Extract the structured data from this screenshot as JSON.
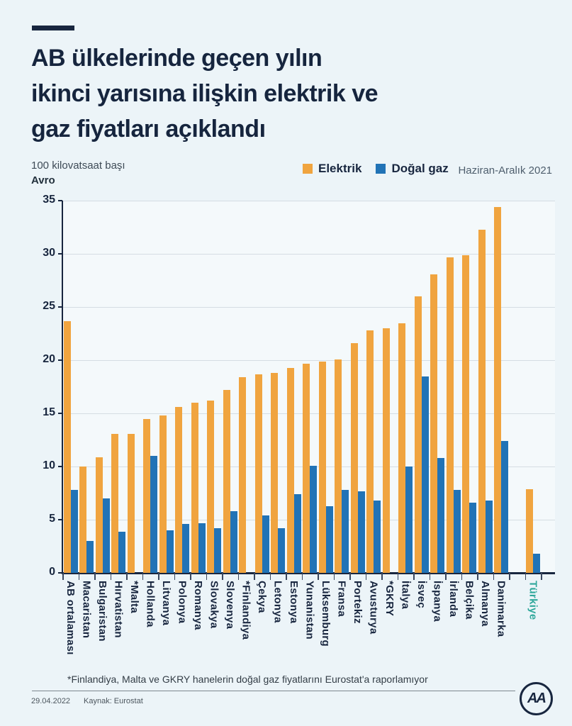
{
  "header": {
    "title": "AB ülkelerinde geçen yılın ikinci yarısına ilişkin elektrik ve gaz fiyatları açıklandı",
    "title_lines": [
      "AB ülkelerinde geçen yılın",
      "ikinci yarısına ilişkin elektrik ve",
      "gaz fiyatları açıklandı"
    ]
  },
  "subtitle": {
    "line1": "100 kilovatsaat başı",
    "line2": "Avro"
  },
  "legend": {
    "electric": "Elektrik",
    "gas": "Doğal gaz",
    "period": "Haziran-Aralık 2021"
  },
  "footnote": "*Finlandiya, Malta ve GKRY hanelerin doğal gaz fiyatlarını Eurostat'a raporlamıyor",
  "footer": {
    "date": "29.04.2022",
    "source": "Kaynak: Eurostat",
    "logo_text": "AA"
  },
  "colors": {
    "background": "#ECF4F8",
    "navy": "#18263F",
    "electric_orange": "#F0A43F",
    "gas_blue": "#2173B6",
    "turkiye_teal": "#2EA79B",
    "gridline": "#D5DDE3"
  },
  "chart_data": {
    "type": "bar",
    "title": "AB ülkelerinde geçen yılın ikinci yarısına ilişkin elektrik ve gaz fiyatları açıklandı",
    "unit_label": "100 kilovatsaat başı Avro",
    "period": "Haziran-Aralık 2021",
    "ylim": [
      0,
      35
    ],
    "yticks": [
      0,
      5,
      10,
      15,
      20,
      25,
      30,
      35
    ],
    "grid": true,
    "legend_position": "top",
    "highlight_category": "Türkiye",
    "gap_before_last_category": true,
    "categories": [
      "AB ortalaması",
      "Macaristan",
      "Bulgaristan",
      "Hırvatistan",
      "*Malta",
      "Hollanda",
      "Litvanya",
      "Polonya",
      "Romanya",
      "Slovakya",
      "Slovenya",
      "*Finlandiya",
      "Çekya",
      "Letonya",
      "Estonya",
      "Yunanistan",
      "Lüksemburg",
      "Fransa",
      "Portekiz",
      "Avusturya",
      "*GKRY",
      "İtalya",
      "İsveç",
      "İspanya",
      "İrlanda",
      "Belçika",
      "Almanya",
      "Danimarka",
      "Türkiye"
    ],
    "series": [
      {
        "name": "Elektrik",
        "color": "#F0A43F",
        "values": [
          23.7,
          10.0,
          10.9,
          13.1,
          13.1,
          14.5,
          14.8,
          15.6,
          16.0,
          16.2,
          17.2,
          18.4,
          18.7,
          18.8,
          19.3,
          19.7,
          19.9,
          20.1,
          21.6,
          22.8,
          23.0,
          23.5,
          26.0,
          28.1,
          29.7,
          29.9,
          32.3,
          34.4,
          7.9
        ]
      },
      {
        "name": "Doğal gaz",
        "color": "#2173B6",
        "values": [
          7.8,
          3.0,
          7.0,
          3.9,
          null,
          11.0,
          4.0,
          4.6,
          4.7,
          4.2,
          5.8,
          null,
          5.4,
          4.2,
          7.4,
          10.1,
          6.3,
          7.8,
          7.7,
          6.8,
          null,
          10.0,
          18.5,
          10.8,
          7.8,
          6.6,
          6.8,
          12.4,
          1.8
        ]
      }
    ]
  }
}
